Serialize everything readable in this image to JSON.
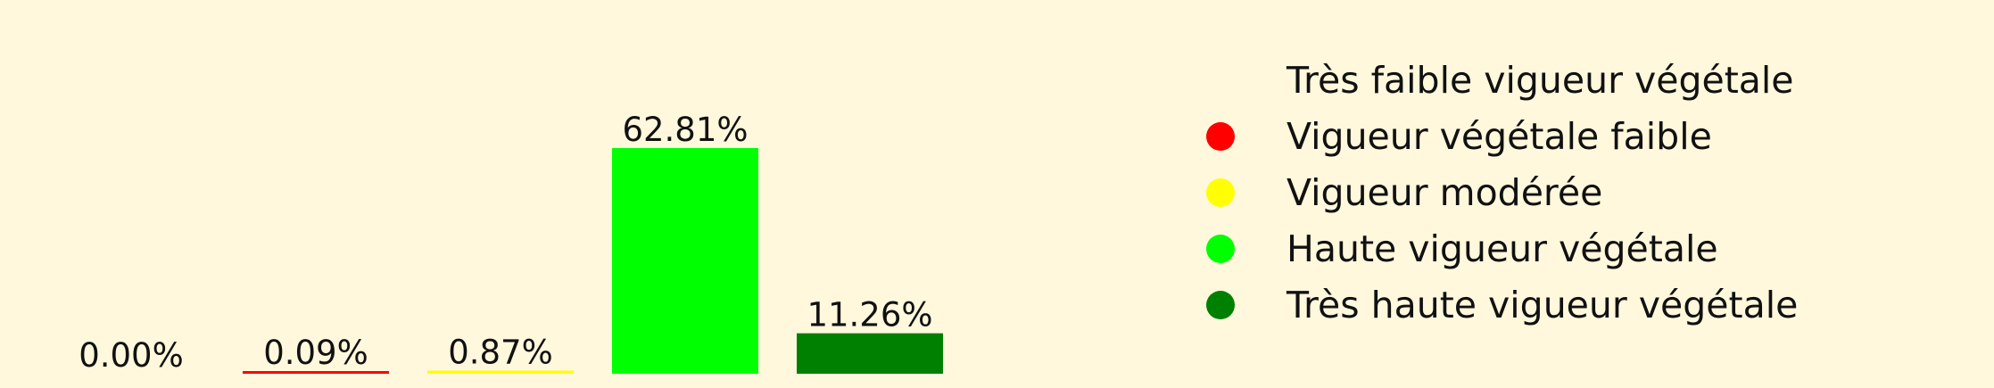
{
  "chart_data": {
    "type": "bar",
    "categories": [
      "Très faible vigueur végétale",
      "Vigueur végétale faible",
      "Vigueur modérée",
      "Haute vigueur végétale",
      "Très haute vigueur végétale"
    ],
    "values": [
      0.0,
      0.09,
      0.87,
      62.81,
      11.26
    ],
    "value_labels": [
      "0.00%",
      "0.09%",
      "0.87%",
      "62.81%",
      "11.26%"
    ],
    "colors": [
      "#fff8dc",
      "#ff0000",
      "#ffff00",
      "#00ff00",
      "#008000"
    ],
    "ylim": [
      0,
      62.81
    ],
    "grid": false,
    "legend": {
      "position": "right",
      "items": [
        {
          "label": "Très faible vigueur végétale",
          "color": "#fff8dc"
        },
        {
          "label": "Vigueur végétale faible",
          "color": "#ff0000"
        },
        {
          "label": "Vigueur modérée",
          "color": "#ffff00"
        },
        {
          "label": "Haute vigueur végétale",
          "color": "#00ff00"
        },
        {
          "label": "Très haute vigueur végétale",
          "color": "#008000"
        }
      ]
    }
  }
}
